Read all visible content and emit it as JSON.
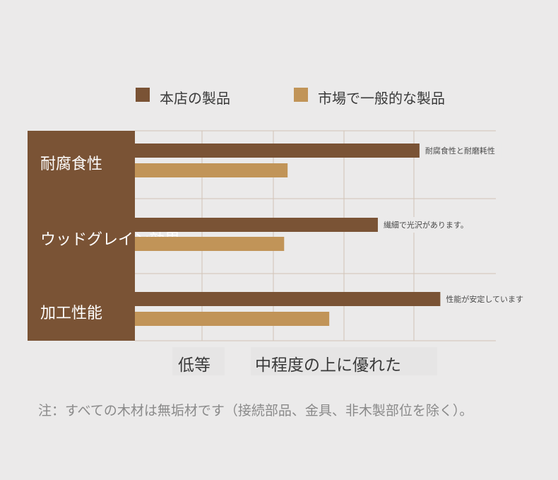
{
  "colors": {
    "ours": "#7a5335",
    "market": "#c19458",
    "grid": "#d2c3b6",
    "category_panel": "#7a5335"
  },
  "chart_data": {
    "type": "bar",
    "orientation": "horizontal",
    "categories": [
      "耐腐食性",
      "ウッドグレイン効果",
      "加工性能"
    ],
    "series": [
      {
        "name": "本店の製品",
        "values": [
          4.1,
          3.5,
          4.4
        ]
      },
      {
        "name": "市場で一般的な製品",
        "values": [
          2.2,
          2.15,
          2.8
        ]
      }
    ],
    "annotations": [
      "耐腐食性と耐磨耗性",
      "繊細で光沢があります。",
      "性能が安定しています"
    ],
    "x_tick_labels": [
      "低等",
      "中程度の上に優れた"
    ],
    "xlim": [
      0,
      5.2
    ],
    "grid": true,
    "legend": "top"
  },
  "footnote": "注：すべての木材は無垢材です（接続部品、金具、非木製部位を除く）。"
}
